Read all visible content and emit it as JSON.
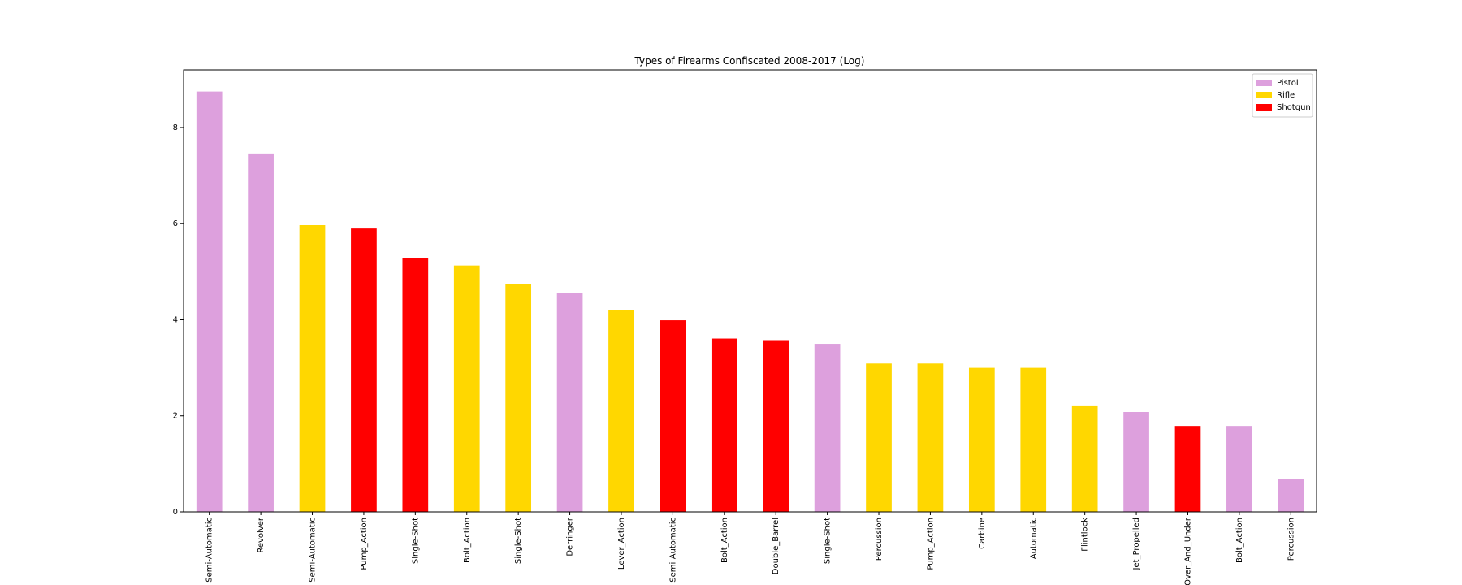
{
  "chart_data": {
    "type": "bar",
    "title": "Types of Firearms Confiscated 2008-2017 (Log)",
    "xlabel": "",
    "ylabel": "",
    "ylim": [
      0,
      9.2
    ],
    "yticks": [
      0,
      2,
      4,
      6,
      8
    ],
    "categories": [
      "Semi-Automatic",
      "Revolver",
      "Semi-Automatic",
      "Pump_Action",
      "Single-Shot",
      "Bolt_Action",
      "Single-Shot",
      "Derringer",
      "Lever_Action",
      "Semi-Automatic",
      "Bolt_Action",
      "Double_Barrel",
      "Single-Shot",
      "Percussion",
      "Pump_Action",
      "Carbine",
      "Automatic",
      "Flintlock",
      "Jet_Propelled",
      "Over_And_Under",
      "Bolt_Action",
      "Percussion"
    ],
    "values": [
      8.75,
      7.46,
      5.97,
      5.9,
      5.28,
      5.13,
      4.74,
      4.55,
      4.2,
      3.99,
      3.61,
      3.56,
      3.5,
      3.09,
      3.09,
      3.0,
      3.0,
      2.2,
      2.08,
      1.79,
      1.79,
      0.69
    ],
    "groups": [
      "Pistol",
      "Pistol",
      "Rifle",
      "Shotgun",
      "Shotgun",
      "Rifle",
      "Rifle",
      "Pistol",
      "Rifle",
      "Shotgun",
      "Shotgun",
      "Shotgun",
      "Pistol",
      "Rifle",
      "Rifle",
      "Rifle",
      "Rifle",
      "Rifle",
      "Pistol",
      "Shotgun",
      "Pistol",
      "Pistol"
    ],
    "legend": {
      "placement": "upper-right",
      "entries": [
        {
          "name": "Pistol",
          "color": "#dda0dd"
        },
        {
          "name": "Rifle",
          "color": "#ffd700"
        },
        {
          "name": "Shotgun",
          "color": "#ff0000"
        }
      ]
    },
    "grid": false
  }
}
